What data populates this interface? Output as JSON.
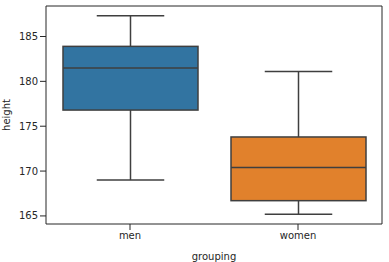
{
  "chart_data": {
    "type": "box",
    "categories": [
      "men",
      "women"
    ],
    "stats": [
      {
        "min": 169.0,
        "q1": 176.8,
        "median": 181.5,
        "q3": 183.9,
        "max": 187.3
      },
      {
        "min": 165.2,
        "q1": 166.7,
        "median": 170.4,
        "q3": 173.8,
        "max": 181.1
      }
    ],
    "colors": [
      "#3274a1",
      "#e1812c"
    ],
    "x_label": "grouping",
    "y_label": "height",
    "ylim": [
      164.1,
      188.4
    ],
    "yticks": [
      165,
      170,
      175,
      180,
      185
    ]
  }
}
